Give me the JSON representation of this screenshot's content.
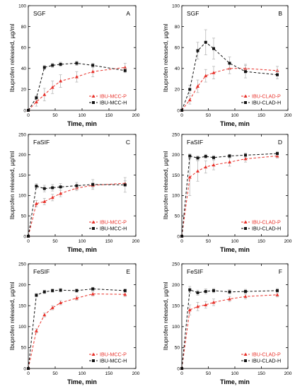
{
  "figure": {
    "xlabel": "Time, min",
    "ylabel": "Ibuprofen released, µg/ml"
  },
  "colors": {
    "p_series": "#e8312a",
    "h_series": "#111111",
    "error_bar": "#b8b8b8",
    "axis": "#000000"
  },
  "chart_data": [
    {
      "type": "line",
      "letter": "A",
      "medium": "SGF",
      "xlabel": "Time, min",
      "ylabel": "Ibuprofen released, µg/ml",
      "xlim": [
        0,
        200
      ],
      "ylim": [
        0,
        100
      ],
      "xticks": [
        0,
        50,
        100,
        150,
        200
      ],
      "yticks": [
        0,
        20,
        40,
        60,
        80,
        100
      ],
      "legend_position": "bottom-right",
      "series": [
        {
          "name": "IBU-MCC-P",
          "x": [
            0,
            15,
            30,
            45,
            60,
            90,
            120,
            180
          ],
          "y": [
            0,
            8,
            15,
            22,
            28,
            32,
            37,
            41
          ],
          "err": [
            0,
            4,
            6,
            6,
            6,
            5,
            5,
            4
          ]
        },
        {
          "name": "IBU-MCC-H",
          "x": [
            0,
            15,
            30,
            45,
            60,
            90,
            120,
            180
          ],
          "y": [
            0,
            12,
            41,
            43,
            44,
            45,
            43,
            38
          ],
          "err": [
            0,
            2,
            2,
            2,
            2,
            2,
            2,
            2
          ]
        }
      ]
    },
    {
      "type": "line",
      "letter": "B",
      "medium": "SGF",
      "xlabel": "Time, min",
      "ylabel": "Ibuprofen released, µg/ml",
      "xlim": [
        0,
        200
      ],
      "ylim": [
        0,
        100
      ],
      "xticks": [
        0,
        50,
        100,
        150,
        200
      ],
      "yticks": [
        0,
        20,
        40,
        60,
        80,
        100
      ],
      "legend_position": "bottom-right",
      "series": [
        {
          "name": "IBU-CLAD-P",
          "x": [
            0,
            15,
            30,
            45,
            60,
            90,
            120,
            180
          ],
          "y": [
            0,
            10,
            23,
            33,
            36,
            40,
            40,
            38
          ],
          "err": [
            0,
            4,
            6,
            6,
            6,
            5,
            4,
            4
          ]
        },
        {
          "name": "IBU-CLAD-H",
          "x": [
            0,
            15,
            30,
            45,
            60,
            90,
            120,
            180
          ],
          "y": [
            0,
            20,
            57,
            65,
            59,
            45,
            37,
            34
          ],
          "err": [
            0,
            4,
            8,
            12,
            10,
            6,
            6,
            4
          ]
        }
      ]
    },
    {
      "type": "line",
      "letter": "C",
      "medium": "FaSIF",
      "xlabel": "Time, min",
      "ylabel": "Ibuprofen released, µg/ml",
      "xlim": [
        0,
        200
      ],
      "ylim": [
        0,
        250
      ],
      "xticks": [
        0,
        50,
        100,
        150,
        200
      ],
      "yticks": [
        0,
        50,
        100,
        150,
        200,
        250
      ],
      "legend_position": "bottom-right",
      "series": [
        {
          "name": "IBU-MCC-P",
          "x": [
            0,
            15,
            30,
            45,
            60,
            90,
            120,
            180
          ],
          "y": [
            0,
            80,
            85,
            95,
            105,
            118,
            125,
            130
          ],
          "err": [
            0,
            8,
            8,
            8,
            8,
            6,
            6,
            6
          ]
        },
        {
          "name": "IBU-MCC-H",
          "x": [
            0,
            15,
            30,
            45,
            60,
            90,
            120,
            180
          ],
          "y": [
            0,
            123,
            117,
            119,
            121,
            124,
            127,
            126
          ],
          "err": [
            0,
            6,
            8,
            8,
            8,
            8,
            12,
            18
          ]
        }
      ]
    },
    {
      "type": "line",
      "letter": "D",
      "medium": "FaSIF",
      "xlabel": "Time, min",
      "ylabel": "Ibuprofen released, µg/ml",
      "xlim": [
        0,
        200
      ],
      "ylim": [
        0,
        250
      ],
      "xticks": [
        0,
        50,
        100,
        150,
        200
      ],
      "yticks": [
        0,
        50,
        100,
        150,
        200,
        250
      ],
      "legend_position": "bottom-right",
      "series": [
        {
          "name": "IBU-CLAD-P",
          "x": [
            0,
            15,
            30,
            45,
            60,
            90,
            120,
            180
          ],
          "y": [
            0,
            145,
            160,
            170,
            175,
            182,
            190,
            197
          ],
          "err": [
            0,
            45,
            25,
            15,
            12,
            10,
            8,
            5
          ]
        },
        {
          "name": "IBU-CLAD-H",
          "x": [
            0,
            15,
            30,
            45,
            60,
            90,
            120,
            180
          ],
          "y": [
            0,
            197,
            192,
            196,
            193,
            197,
            199,
            203
          ],
          "err": [
            0,
            5,
            5,
            5,
            5,
            4,
            5,
            5
          ]
        }
      ]
    },
    {
      "type": "line",
      "letter": "E",
      "medium": "FeSIF",
      "xlabel": "Time, min",
      "ylabel": "Ibuprofen released, µg/ml",
      "xlim": [
        0,
        200
      ],
      "ylim": [
        0,
        250
      ],
      "xticks": [
        0,
        50,
        100,
        150,
        200
      ],
      "yticks": [
        0,
        50,
        100,
        150,
        200,
        250
      ],
      "legend_position": "bottom-right",
      "series": [
        {
          "name": "IBU-MCC-P",
          "x": [
            0,
            15,
            30,
            45,
            60,
            90,
            120,
            180
          ],
          "y": [
            0,
            90,
            128,
            145,
            157,
            168,
            178,
            177
          ],
          "err": [
            0,
            5,
            5,
            5,
            5,
            5,
            5,
            5
          ]
        },
        {
          "name": "IBU-MCC-H",
          "x": [
            0,
            15,
            30,
            45,
            60,
            90,
            120,
            180
          ],
          "y": [
            0,
            175,
            183,
            186,
            187,
            186,
            190,
            186
          ],
          "err": [
            0,
            4,
            4,
            4,
            4,
            4,
            4,
            4
          ]
        }
      ]
    },
    {
      "type": "line",
      "letter": "F",
      "medium": "FeSIF",
      "xlabel": "Time, min",
      "ylabel": "Ibuprofen released, µg/ml",
      "xlim": [
        0,
        200
      ],
      "ylim": [
        0,
        250
      ],
      "xticks": [
        0,
        50,
        100,
        150,
        200
      ],
      "yticks": [
        0,
        50,
        100,
        150,
        200,
        250
      ],
      "legend_position": "bottom-right",
      "series": [
        {
          "name": "IBU-CLAD-P",
          "x": [
            0,
            15,
            30,
            45,
            60,
            90,
            120,
            180
          ],
          "y": [
            0,
            140,
            148,
            152,
            158,
            166,
            172,
            176
          ],
          "err": [
            0,
            12,
            10,
            8,
            8,
            6,
            6,
            5
          ]
        },
        {
          "name": "IBU-CLAD-H",
          "x": [
            0,
            15,
            30,
            45,
            60,
            90,
            120,
            180
          ],
          "y": [
            0,
            188,
            181,
            184,
            186,
            183,
            184,
            186
          ],
          "err": [
            0,
            8,
            6,
            6,
            5,
            5,
            5,
            5
          ]
        }
      ]
    }
  ]
}
